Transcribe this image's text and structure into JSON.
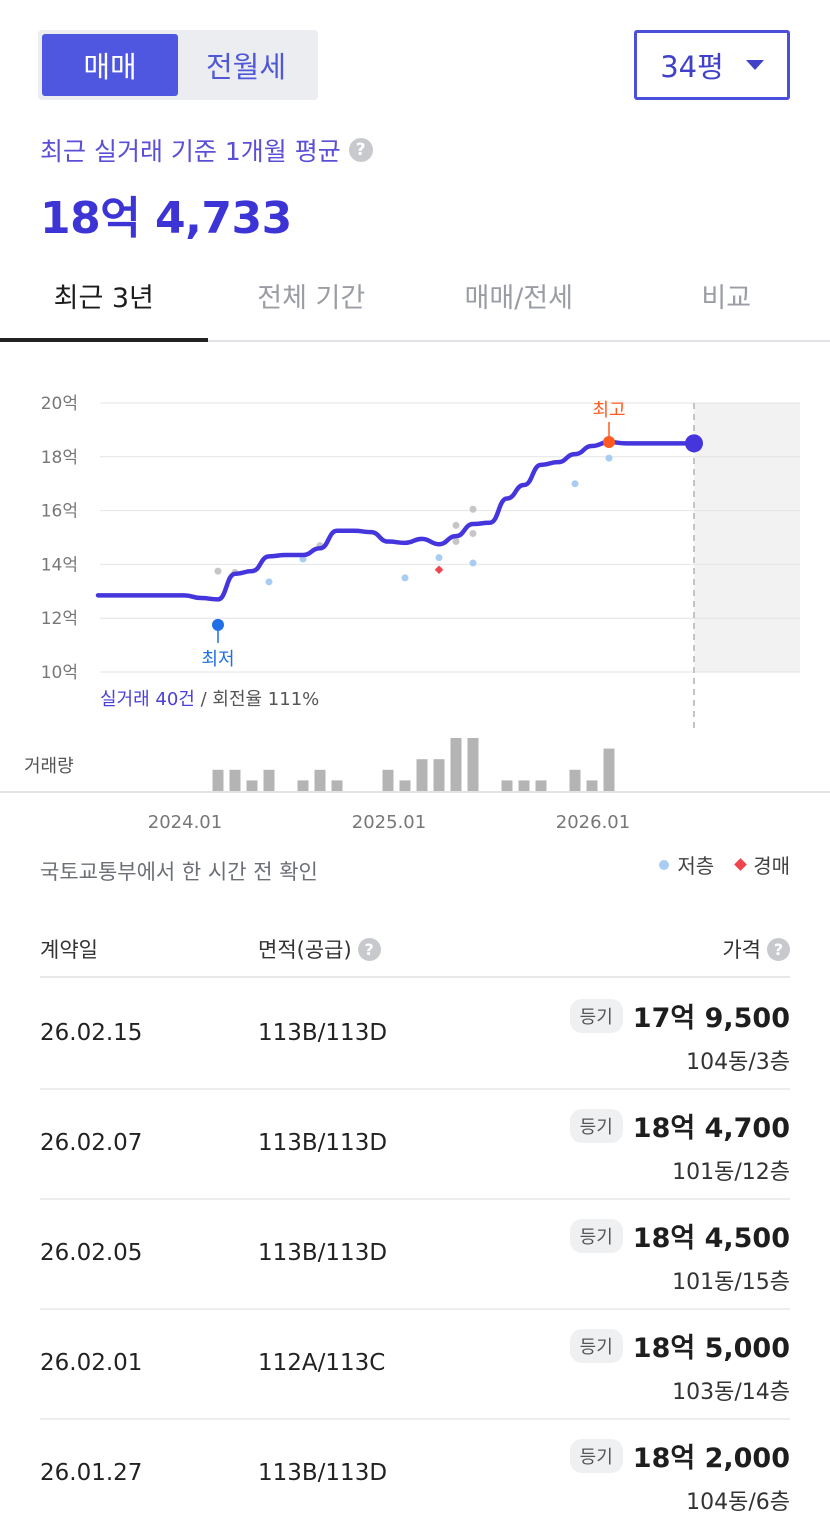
{
  "trade_toggle": {
    "options": [
      "매매",
      "전월세"
    ],
    "selected": "매매"
  },
  "size_select": {
    "value": "34평"
  },
  "summary": {
    "label": "최근 실거래 기준 1개월 평균",
    "value": "18억 4,733"
  },
  "tabs": [
    {
      "label": "최근 3년",
      "active": true
    },
    {
      "label": "전체 기간",
      "active": false
    },
    {
      "label": "매매/전세",
      "active": false
    },
    {
      "label": "비교",
      "active": false
    }
  ],
  "chart_data": {
    "type": "line",
    "y_ticks": [
      "20억",
      "18억",
      "16억",
      "14억",
      "12억",
      "10억"
    ],
    "ylim": [
      10,
      20
    ],
    "y_unit": "억",
    "x_ticks": [
      "2024.01",
      "2025.01",
      "2026.01"
    ],
    "grid": true,
    "series": [
      {
        "values_over_time": [
          [
            "2023-03",
            12.85
          ],
          [
            "2023-06",
            12.85
          ],
          [
            "2023-09",
            12.85
          ],
          [
            "2023-11",
            12.85
          ],
          [
            "2023-12",
            12.75
          ],
          [
            "2024-01",
            12.7
          ],
          [
            "2024-02",
            13.65
          ],
          [
            "2024-03",
            13.75
          ],
          [
            "2024-04",
            14.3
          ],
          [
            "2024-05",
            14.35
          ],
          [
            "2024-06",
            14.35
          ],
          [
            "2024-07",
            14.6
          ],
          [
            "2024-08",
            15.25
          ],
          [
            "2024-09",
            15.25
          ],
          [
            "2024-10",
            15.2
          ],
          [
            "2024-11",
            14.85
          ],
          [
            "2024-12",
            14.8
          ],
          [
            "2025-01",
            14.95
          ],
          [
            "2025-02",
            14.75
          ],
          [
            "2025-03",
            15.05
          ],
          [
            "2025-04",
            15.5
          ],
          [
            "2025-05",
            15.55
          ],
          [
            "2025-06",
            16.45
          ],
          [
            "2025-07",
            16.95
          ],
          [
            "2025-08",
            17.7
          ],
          [
            "2025-09",
            17.8
          ],
          [
            "2025-10",
            18.1
          ],
          [
            "2025-11",
            18.4
          ],
          [
            "2025-12",
            18.55
          ],
          [
            "2026-01",
            18.5
          ],
          [
            "2026-02",
            18.5
          ],
          [
            "2026-03",
            18.5
          ],
          [
            "2026-04",
            18.5
          ],
          [
            "2026-05",
            18.5
          ]
        ]
      }
    ],
    "scatter_trades": [
      {
        "date": "2024-01",
        "value": 13.75,
        "kind": "normal"
      },
      {
        "date": "2024-02",
        "value": 13.7,
        "kind": "normal"
      },
      {
        "date": "2024-04",
        "value": 13.35,
        "kind": "low_floor"
      },
      {
        "date": "2024-06",
        "value": 14.2,
        "kind": "low_floor"
      },
      {
        "date": "2024-07",
        "value": 14.7,
        "kind": "normal"
      },
      {
        "date": "2024-12",
        "value": 13.5,
        "kind": "low_floor"
      },
      {
        "date": "2025-02",
        "value": 14.25,
        "kind": "low_floor"
      },
      {
        "date": "2025-02",
        "value": 13.8,
        "kind": "auction"
      },
      {
        "date": "2025-03",
        "value": 14.85,
        "kind": "normal"
      },
      {
        "date": "2025-03",
        "value": 15.45,
        "kind": "normal"
      },
      {
        "date": "2025-04",
        "value": 16.05,
        "kind": "normal"
      },
      {
        "date": "2025-04",
        "value": 15.15,
        "kind": "normal"
      },
      {
        "date": "2025-04",
        "value": 14.05,
        "kind": "low_floor"
      },
      {
        "date": "2025-10",
        "value": 17.0,
        "kind": "low_floor"
      },
      {
        "date": "2025-12",
        "value": 17.95,
        "kind": "low_floor"
      }
    ],
    "min_marker": {
      "label": "최저",
      "date": "2024-01",
      "value": 11.75
    },
    "max_marker": {
      "label": "최고",
      "date": "2025-12",
      "value": 18.55
    },
    "current_point": {
      "date": "2026-05",
      "value": 18.5
    },
    "volume": {
      "label": "거래량",
      "bars": [
        [
          "2024-01",
          2
        ],
        [
          "2024-02",
          2
        ],
        [
          "2024-03",
          1
        ],
        [
          "2024-04",
          2
        ],
        [
          "2024-06",
          1
        ],
        [
          "2024-07",
          2
        ],
        [
          "2024-08",
          1
        ],
        [
          "2024-11",
          2
        ],
        [
          "2024-12",
          1
        ],
        [
          "2025-01",
          3
        ],
        [
          "2025-02",
          3
        ],
        [
          "2025-03",
          5
        ],
        [
          "2025-04",
          5
        ],
        [
          "2025-06",
          1
        ],
        [
          "2025-07",
          1
        ],
        [
          "2025-08",
          1
        ],
        [
          "2025-10",
          2
        ],
        [
          "2025-11",
          1
        ],
        [
          "2025-12",
          4
        ]
      ]
    },
    "footnote": {
      "count_text": "실거래 40건",
      "rest_text": " / 회전율 111%"
    }
  },
  "source_note": "국토교통부에서 한 시간 전 확인",
  "legend": {
    "low_floor": "저층",
    "auction": "경매"
  },
  "colors": {
    "accent": "#4f57e0",
    "line": "#4535dd",
    "max": "#ff5a1f",
    "min": "#1f6fe6",
    "low_floor": "#a9cdf2",
    "auction": "#f0454f"
  },
  "table": {
    "headers": {
      "date": "계약일",
      "area": "면적(공급)",
      "price": "가격"
    },
    "rows": [
      {
        "date": "26.02.15",
        "area": "113B/113D",
        "badge": "등기",
        "price": "17억 9,500",
        "unit": "104동/3층"
      },
      {
        "date": "26.02.07",
        "area": "113B/113D",
        "badge": "등기",
        "price": "18억 4,700",
        "unit": "101동/12층"
      },
      {
        "date": "26.02.05",
        "area": "113B/113D",
        "badge": "등기",
        "price": "18억 4,500",
        "unit": "101동/15층"
      },
      {
        "date": "26.02.01",
        "area": "112A/113C",
        "badge": "등기",
        "price": "18억 5,000",
        "unit": "103동/14층"
      },
      {
        "date": "26.01.27",
        "area": "113B/113D",
        "badge": "등기",
        "price": "18억 2,000",
        "unit": "104동/6층"
      }
    ]
  }
}
